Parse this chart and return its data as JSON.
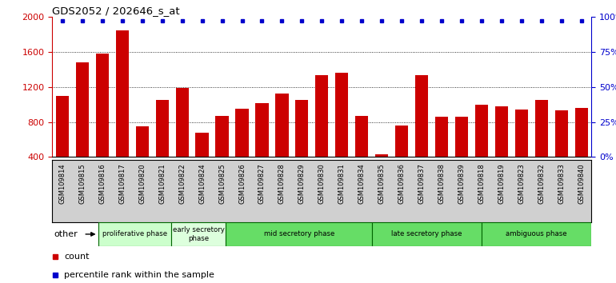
{
  "title": "GDS2052 / 202646_s_at",
  "samples": [
    "GSM109814",
    "GSM109815",
    "GSM109816",
    "GSM109817",
    "GSM109820",
    "GSM109821",
    "GSM109822",
    "GSM109824",
    "GSM109825",
    "GSM109826",
    "GSM109827",
    "GSM109828",
    "GSM109829",
    "GSM109830",
    "GSM109831",
    "GSM109834",
    "GSM109835",
    "GSM109836",
    "GSM109837",
    "GSM109838",
    "GSM109839",
    "GSM109818",
    "GSM109819",
    "GSM109823",
    "GSM109832",
    "GSM109833",
    "GSM109840"
  ],
  "counts": [
    1100,
    1480,
    1580,
    1850,
    750,
    1050,
    1185,
    680,
    870,
    950,
    1020,
    1130,
    1050,
    1340,
    1360,
    870,
    430,
    760,
    1340,
    860,
    860,
    1000,
    980,
    940,
    1050,
    930,
    960
  ],
  "percentile_rank_vals": [
    97,
    97,
    97,
    97,
    97,
    97,
    97,
    97,
    97,
    97,
    97,
    97,
    97,
    97,
    97,
    97,
    97,
    97,
    97,
    97,
    97,
    97,
    97,
    97,
    97,
    97,
    97
  ],
  "bar_color": "#cc0000",
  "dot_color": "#0000cc",
  "ylim_left": [
    400,
    2000
  ],
  "ylim_right": [
    0,
    100
  ],
  "yticks_left": [
    400,
    800,
    1200,
    1600,
    2000
  ],
  "yticks_right": [
    0,
    25,
    50,
    75,
    100
  ],
  "phases": [
    {
      "label": "proliferative phase",
      "start": 0,
      "end": 4,
      "color": "#ccffcc"
    },
    {
      "label": "early secretory\nphase",
      "start": 4,
      "end": 7,
      "color": "#ddffdd"
    },
    {
      "label": "mid secretory phase",
      "start": 7,
      "end": 15,
      "color": "#66dd66"
    },
    {
      "label": "late secretory phase",
      "start": 15,
      "end": 21,
      "color": "#66dd66"
    },
    {
      "label": "ambiguous phase",
      "start": 21,
      "end": 27,
      "color": "#66dd66"
    }
  ],
  "tick_bg_color": "#d0d0d0",
  "phase_border_color": "#006600"
}
